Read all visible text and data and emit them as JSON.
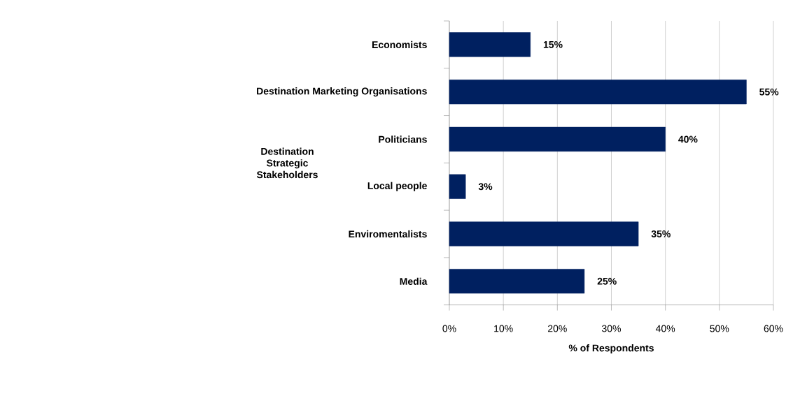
{
  "chart_data": {
    "type": "bar",
    "orientation": "horizontal",
    "categories": [
      "Economists",
      "Destination Marketing  Organisations",
      "Politicians",
      "Local people",
      "Enviromentalists",
      "Media"
    ],
    "values": [
      15,
      55,
      40,
      3,
      35,
      25
    ],
    "value_labels": [
      "15%",
      "55%",
      "40%",
      "3%",
      "35%",
      "25%"
    ],
    "color": "#002060",
    "xlim": [
      0,
      60
    ],
    "xticks": [
      {
        "value": 0,
        "label": "0%"
      },
      {
        "value": 10,
        "label": "10%"
      },
      {
        "value": 20,
        "label": "20%"
      },
      {
        "value": 30,
        "label": "30%"
      },
      {
        "value": 40,
        "label": "40%"
      },
      {
        "value": 50,
        "label": "50%"
      },
      {
        "value": 60,
        "label": "60%"
      }
    ],
    "xlabel": "% of Respondents",
    "ylabel": "Destination Strategic Stakeholders",
    "grid": "x"
  }
}
